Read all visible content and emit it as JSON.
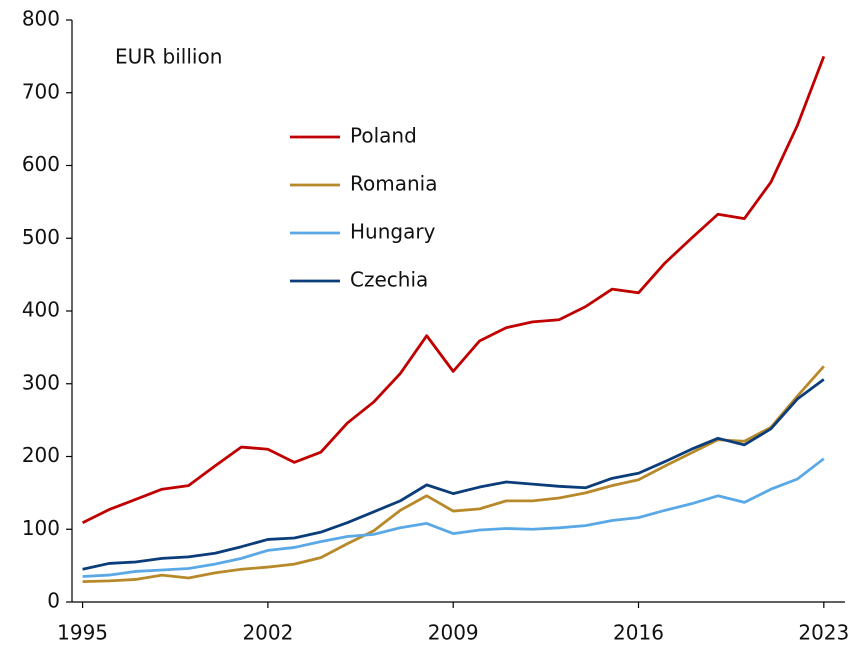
{
  "chart_data": {
    "type": "line",
    "annotation": "EUR billion",
    "x": [
      1995,
      1996,
      1997,
      1998,
      1999,
      2000,
      2001,
      2002,
      2003,
      2004,
      2005,
      2006,
      2007,
      2008,
      2009,
      2010,
      2011,
      2012,
      2013,
      2014,
      2015,
      2016,
      2017,
      2018,
      2019,
      2020,
      2021,
      2022,
      2023
    ],
    "series": [
      {
        "name": "Poland",
        "color": "#c00000",
        "values": [
          109,
          127,
          141,
          155,
          160,
          187,
          213,
          210,
          192,
          206,
          246,
          275,
          314,
          366,
          317,
          359,
          377,
          385,
          388,
          406,
          430,
          425,
          466,
          500,
          533,
          527,
          577,
          655,
          750
        ]
      },
      {
        "name": "Romania",
        "color": "#b8892a",
        "values": [
          28,
          29,
          31,
          37,
          33,
          40,
          45,
          48,
          52,
          61,
          80,
          98,
          126,
          146,
          125,
          128,
          139,
          139,
          143,
          150,
          160,
          168,
          187,
          205,
          223,
          221,
          240,
          283,
          324
        ]
      },
      {
        "name": "Hungary",
        "color": "#5aa9e6",
        "values": [
          35,
          37,
          42,
          44,
          46,
          52,
          60,
          71,
          75,
          83,
          90,
          93,
          102,
          108,
          94,
          99,
          101,
          100,
          102,
          105,
          112,
          116,
          126,
          135,
          146,
          137,
          155,
          169,
          197
        ]
      },
      {
        "name": "Czechia",
        "color": "#0b3d7a",
        "values": [
          45,
          53,
          55,
          60,
          62,
          67,
          76,
          86,
          88,
          96,
          109,
          124,
          139,
          161,
          149,
          158,
          165,
          162,
          159,
          157,
          170,
          177,
          193,
          210,
          225,
          216,
          238,
          279,
          306
        ]
      }
    ],
    "xlim": [
      1994.6,
      2023.8
    ],
    "xticks": [
      1995,
      2002,
      2009,
      2016,
      2023
    ],
    "ylim": [
      0,
      800
    ],
    "yticks": [
      0,
      100,
      200,
      300,
      400,
      500,
      600,
      700,
      800
    ],
    "grid": false
  }
}
